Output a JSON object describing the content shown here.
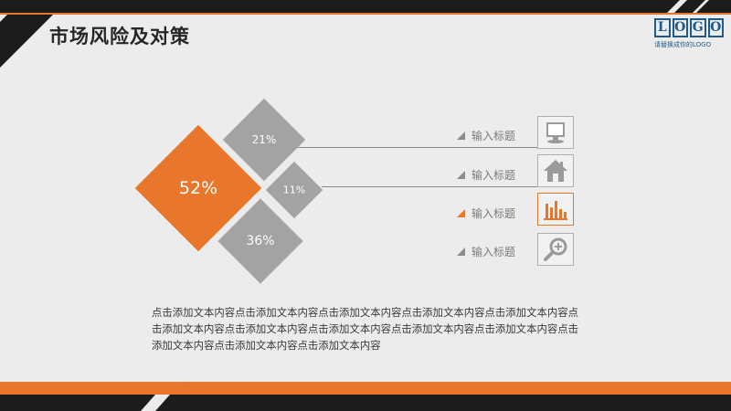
{
  "slide": {
    "title": "市场风险及对策",
    "logo": {
      "letters": [
        "L",
        "O",
        "G",
        "O"
      ],
      "subtitle": "请替换成你的LOGO"
    }
  },
  "diamonds": [
    {
      "value": "52%",
      "color": "#e8772b"
    },
    {
      "value": "21%",
      "color": "#a3a3a3"
    },
    {
      "value": "11%",
      "color": "#a3a3a3"
    },
    {
      "value": "36%",
      "color": "#a3a3a3"
    }
  ],
  "items": [
    {
      "label": "输入标题",
      "icon": "monitor-icon",
      "active": false
    },
    {
      "label": "输入标题",
      "icon": "home-icon",
      "active": false
    },
    {
      "label": "输入标题",
      "icon": "bar-chart-icon",
      "active": true
    },
    {
      "label": "输入标题",
      "icon": "magnifier-icon",
      "active": false
    }
  ],
  "body_text": "点击添加文本内容点击添加文本内容点击添加文本内容点击添加文本内容点击添加文本内容点击添加文本内容点击添加文本内容点击添加文本内容点击添加文本内容点击添加文本内容点击添加文本内容点击添加文本内容点击添加文本内容",
  "colors": {
    "accent": "#e8772b",
    "gray": "#a3a3a3",
    "dark": "#1c1c1c",
    "logo": "#1e5a8c"
  }
}
